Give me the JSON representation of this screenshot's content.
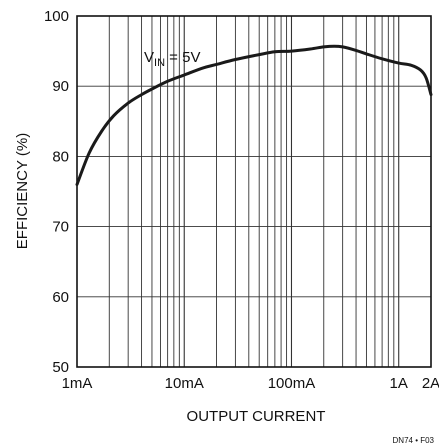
{
  "chart_data": {
    "type": "line",
    "title": "",
    "xlabel": "OUTPUT CURRENT",
    "ylabel": "EFFICIENCY (%)",
    "xscale": "log",
    "xlim": [
      0.001,
      2
    ],
    "ylim": [
      50,
      100
    ],
    "grid": true,
    "x_tick_labels": [
      {
        "value": 0.001,
        "label": "1mA"
      },
      {
        "value": 0.01,
        "label": "10mA"
      },
      {
        "value": 0.1,
        "label": "100mA"
      },
      {
        "value": 1,
        "label": "1A"
      },
      {
        "value": 2,
        "label": "2A"
      }
    ],
    "y_ticks": [
      50,
      60,
      70,
      80,
      90,
      100
    ],
    "annotation": {
      "main": "V",
      "sub": "IN",
      "rest": " = 5V"
    },
    "figure_id": "DN74 • F03",
    "series": [
      {
        "x": [
          0.001,
          0.0013,
          0.0017,
          0.0022,
          0.003,
          0.004,
          0.005,
          0.007,
          0.01,
          0.015,
          0.02,
          0.03,
          0.05,
          0.07,
          0.1,
          0.15,
          0.2,
          0.25,
          0.3,
          0.4,
          0.5,
          0.7,
          1.0,
          1.3,
          1.6,
          1.8,
          2.0
        ],
        "y": [
          76.0,
          80.5,
          83.6,
          85.8,
          87.6,
          88.8,
          89.6,
          90.7,
          91.6,
          92.6,
          93.1,
          93.8,
          94.5,
          94.9,
          95.0,
          95.3,
          95.6,
          95.7,
          95.6,
          95.1,
          94.6,
          93.9,
          93.3,
          93.0,
          92.3,
          91.2,
          88.8
        ],
        "color": "#1a1a1a"
      }
    ]
  }
}
